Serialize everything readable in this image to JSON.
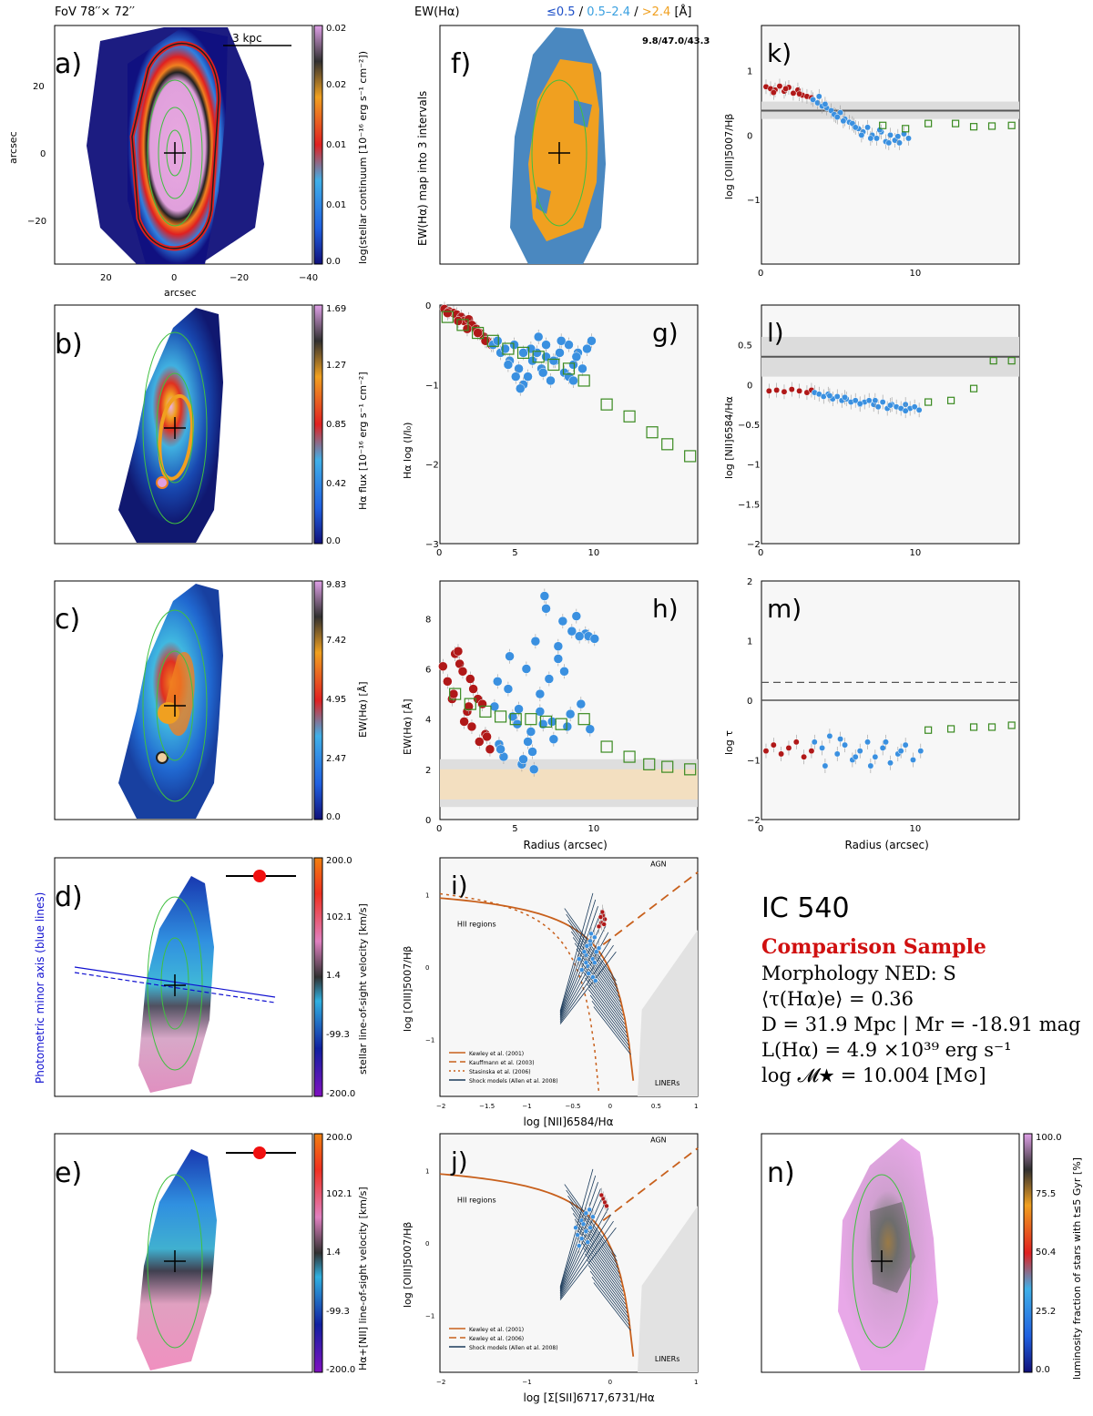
{
  "figure": {
    "header_fov": "FoV 78′′× 72′′",
    "header_ew": "EW(Hα)",
    "ew_intervals": {
      "low": "≤0.5",
      "sep1": " / ",
      "mid": "0.5–2.4",
      "sep2": " / ",
      "high": ">2.4",
      "unit": " [Å]"
    },
    "colors": {
      "low": "#1e50c8",
      "mid": "#3aa0e0",
      "high": "#f0a020",
      "red_title": "#d01010",
      "blue_axis": "#1010d0"
    }
  },
  "info": {
    "galaxy": "IC 540",
    "sample": "Comparison Sample",
    "morphology": "Morphology NED: S",
    "tau": "⟨τ(Hα)e⟩ = 0.36",
    "distance": "D = 31.9 Mpc | Mr = -18.91 mag",
    "lha": "L(Hα) = 4.9 ×10³⁹ erg s⁻¹",
    "mass": "log 𝓜★ = 10.004 [M⊙]"
  },
  "maps": {
    "a": {
      "label": "a)",
      "cbar_label": "log(stellar continuum [10⁻¹⁶ erg s⁻¹ cm⁻²])",
      "cbar_ticks": [
        "0.02",
        "0.02",
        "0.01",
        "0.01",
        "0.0"
      ],
      "x_label": "arcsec",
      "y_label": "arcsec",
      "x_ticks": [
        "20",
        "0",
        "−20",
        "−40"
      ],
      "y_ticks": [
        "20",
        "0",
        "−20"
      ],
      "scale_bar": "3 kpc"
    },
    "b": {
      "label": "b)",
      "cbar_label": "Hα flux [10⁻¹⁶ erg s⁻¹ cm⁻²]",
      "cbar_ticks": [
        "1.69",
        "1.27",
        "0.85",
        "0.42",
        "0.0"
      ]
    },
    "c": {
      "label": "c)",
      "cbar_label": "EW(Hα) [Å]",
      "cbar_ticks": [
        "9.83",
        "7.42",
        "4.95",
        "2.47",
        "0.0"
      ]
    },
    "d": {
      "label": "d)",
      "cbar_label": "stellar line-of-sight velocity [km/s]",
      "cbar_ticks": [
        "200.0",
        "102.1",
        "1.4",
        "-99.3",
        "-200.0"
      ],
      "side_label": "Photometric minor axis (blue lines)"
    },
    "e": {
      "label": "e)",
      "cbar_label": "Hα+[NII] line-of-sight velocity [km/s]",
      "cbar_ticks": [
        "200.0",
        "102.1",
        "1.4",
        "-99.3",
        "-200.0"
      ]
    },
    "f": {
      "label": "f)",
      "y_label": "EW(Hα) map into 3 intervals",
      "stats": "9.8/47.0/43.3"
    },
    "n": {
      "label": "n)",
      "cbar_label": "luminosity fraction of stars with t≤5 Gyr [%]",
      "cbar_ticks": [
        "100.0",
        "75.5",
        "50.4",
        "25.2",
        "0.0"
      ]
    }
  },
  "chart_data": [
    {
      "id": "g",
      "label": "g)",
      "type": "scatter",
      "xlabel": "",
      "ylabel": "Hα log (I/I₀)",
      "xlim": [
        0,
        17
      ],
      "ylim": [
        -3,
        0
      ],
      "x_ticks": [
        "0",
        "5",
        "10"
      ],
      "y_ticks": [
        "0",
        "−1",
        "−2",
        "−3"
      ],
      "series": [
        {
          "name": "red",
          "x": [
            0.3,
            0.6,
            0.9,
            1.1,
            1.4,
            1.6,
            1.9,
            2.1,
            2.4,
            2.6,
            2.9,
            3.1,
            3.4,
            0.5,
            1.2,
            1.8,
            2.5,
            3.0
          ],
          "y": [
            -0.05,
            -0.08,
            -0.1,
            -0.12,
            -0.15,
            -0.2,
            -0.18,
            -0.25,
            -0.3,
            -0.35,
            -0.4,
            -0.45,
            -0.5,
            -0.1,
            -0.2,
            -0.3,
            -0.35,
            -0.45
          ]
        },
        {
          "name": "blue",
          "x": [
            3.5,
            3.8,
            4.0,
            4.3,
            4.6,
            4.9,
            5.2,
            5.5,
            5.8,
            6.1,
            6.4,
            6.7,
            7.0,
            7.3,
            7.6,
            7.9,
            8.2,
            8.5,
            8.8,
            9.1,
            9.4,
            9.7,
            10.0,
            4.5,
            5.0,
            5.5,
            6.0,
            6.5,
            7.0,
            7.5,
            8.0,
            8.5,
            9.0,
            5.3,
            6.8,
            8.8
          ],
          "y": [
            -0.5,
            -0.45,
            -0.6,
            -0.55,
            -0.7,
            -0.5,
            -0.8,
            -0.6,
            -0.9,
            -0.7,
            -0.6,
            -0.8,
            -0.5,
            -0.95,
            -0.7,
            -0.6,
            -0.85,
            -0.5,
            -0.75,
            -0.6,
            -0.8,
            -0.55,
            -0.45,
            -0.75,
            -0.9,
            -1.0,
            -0.55,
            -0.4,
            -0.65,
            -0.7,
            -0.45,
            -0.9,
            -0.65,
            -1.05,
            -0.85,
            -0.95
          ]
        },
        {
          "name": "green_bins",
          "x": [
            0.5,
            1.5,
            2.5,
            3.5,
            4.5,
            5.5,
            6.5,
            7.5,
            8.5,
            9.5,
            11.0,
            12.5,
            14.0,
            15.0,
            16.5
          ],
          "y": [
            -0.15,
            -0.25,
            -0.35,
            -0.45,
            -0.55,
            -0.6,
            -0.65,
            -0.75,
            -0.8,
            -0.95,
            -1.25,
            -1.4,
            -1.6,
            -1.75,
            -1.9
          ]
        }
      ]
    },
    {
      "id": "h",
      "label": "h)",
      "type": "scatter",
      "xlabel": "Radius (arcsec)",
      "ylabel": "EW(Hα) [Å]",
      "xlim": [
        0,
        17
      ],
      "ylim": [
        0,
        9.5
      ],
      "x_ticks": [
        "0",
        "5",
        "10"
      ],
      "y_ticks": [
        "0",
        "2",
        "4",
        "6",
        "8"
      ],
      "series": [
        {
          "name": "red",
          "x": [
            0.2,
            0.5,
            0.8,
            1.0,
            1.3,
            1.5,
            1.8,
            2.0,
            2.2,
            2.5,
            2.8,
            3.0,
            3.3,
            1.2,
            1.6,
            2.1,
            2.6,
            3.1,
            0.9,
            1.9
          ],
          "y": [
            6.1,
            5.5,
            4.8,
            6.6,
            6.2,
            5.9,
            4.3,
            5.6,
            5.2,
            4.8,
            4.6,
            3.4,
            2.8,
            6.7,
            3.9,
            3.7,
            3.1,
            3.3,
            5.0,
            4.5
          ]
        },
        {
          "name": "blue",
          "x": [
            3.6,
            3.9,
            4.2,
            4.5,
            4.8,
            5.1,
            5.4,
            5.7,
            6.0,
            6.3,
            6.6,
            6.9,
            7.2,
            7.5,
            7.8,
            8.1,
            8.4,
            8.7,
            9.0,
            9.3,
            9.6,
            9.9,
            4.0,
            4.6,
            5.2,
            5.8,
            6.2,
            6.6,
            7.0,
            7.4,
            7.8,
            8.2,
            8.6,
            9.2,
            9.8,
            10.2,
            5.5,
            6.1,
            6.8,
            3.8
          ],
          "y": [
            4.5,
            3.0,
            2.5,
            5.2,
            4.1,
            3.8,
            2.2,
            6.0,
            3.5,
            7.1,
            4.3,
            8.9,
            5.6,
            3.2,
            6.4,
            7.9,
            3.7,
            7.5,
            8.1,
            4.6,
            7.4,
            3.6,
            2.8,
            6.5,
            4.4,
            3.1,
            2.0,
            5.0,
            8.4,
            3.9,
            6.9,
            5.9,
            4.2,
            7.3,
            7.3,
            7.2,
            2.4,
            2.7,
            3.8,
            5.5
          ]
        },
        {
          "name": "green_bins",
          "x": [
            1.0,
            2.0,
            3.0,
            4.0,
            5.0,
            6.0,
            7.0,
            8.0,
            9.5,
            11.0,
            12.5,
            13.8,
            15.0,
            16.5
          ],
          "y": [
            5.0,
            4.6,
            4.3,
            4.1,
            4.0,
            4.0,
            3.9,
            3.8,
            4.0,
            2.9,
            2.5,
            2.2,
            2.1,
            2.0
          ]
        }
      ],
      "bands": [
        {
          "name": "grey",
          "range": [
            0.5,
            2.4
          ]
        },
        {
          "name": "orange",
          "range": [
            0.8,
            2.0
          ]
        }
      ]
    },
    {
      "id": "k",
      "label": "k)",
      "type": "scatter",
      "xlabel": "",
      "ylabel": "log [OIII]5007/Hβ",
      "xlim": [
        0,
        17
      ],
      "ylim": [
        -2,
        1.7
      ],
      "x_ticks": [
        "0",
        "10"
      ],
      "y_ticks": [
        "1",
        "0",
        "−1"
      ],
      "hline": 0.38,
      "hband": [
        0.25,
        0.52
      ],
      "series": [
        {
          "name": "red",
          "x": [
            0.3,
            0.6,
            0.9,
            1.2,
            1.5,
            1.8,
            2.1,
            2.4,
            2.7,
            3.0,
            3.3,
            0.8,
            1.6,
            2.5
          ],
          "y": [
            0.75,
            0.72,
            0.7,
            0.76,
            0.68,
            0.74,
            0.65,
            0.7,
            0.62,
            0.6,
            0.58,
            0.66,
            0.72,
            0.64
          ]
        },
        {
          "name": "blue",
          "x": [
            3.4,
            3.7,
            4.0,
            4.3,
            4.6,
            4.9,
            5.2,
            5.5,
            5.8,
            6.1,
            6.4,
            6.7,
            7.0,
            7.3,
            7.6,
            7.9,
            8.2,
            8.5,
            8.8,
            9.1,
            9.4,
            9.7,
            4.2,
            4.8,
            5.4,
            6.0,
            6.6,
            7.2,
            7.8,
            8.4,
            9.0,
            3.8,
            5.0,
            6.2
          ],
          "y": [
            0.55,
            0.5,
            0.45,
            0.42,
            0.38,
            0.3,
            0.35,
            0.25,
            0.2,
            0.15,
            0.1,
            0.05,
            0.12,
            0.0,
            -0.05,
            0.05,
            -0.1,
            0.0,
            -0.08,
            -0.12,
            0.02,
            -0.05,
            0.48,
            0.32,
            0.22,
            0.18,
            0.0,
            -0.05,
            0.08,
            -0.12,
            -0.02,
            0.6,
            0.28,
            0.12
          ]
        },
        {
          "name": "green_bins",
          "x": [
            8.0,
            9.5,
            11.0,
            12.8,
            14.0,
            15.2,
            16.5
          ],
          "y": [
            0.15,
            0.1,
            0.18,
            0.18,
            0.13,
            0.14,
            0.15
          ]
        }
      ]
    },
    {
      "id": "l",
      "label": "l)",
      "type": "scatter",
      "xlabel": "",
      "ylabel": "log [NII]6584/Hα",
      "xlim": [
        0,
        17
      ],
      "ylim": [
        -2,
        1.0
      ],
      "x_ticks": [
        "0",
        "10"
      ],
      "y_ticks": [
        "0.5",
        "0",
        "−0.5",
        "−1",
        "−1.5",
        "−2"
      ],
      "hline": 0.35,
      "hband": [
        0.1,
        0.6
      ],
      "series": [
        {
          "name": "red",
          "x": [
            0.5,
            1.0,
            1.5,
            2.0,
            2.5,
            3.0,
            3.3
          ],
          "y": [
            -0.08,
            -0.07,
            -0.09,
            -0.06,
            -0.08,
            -0.1,
            -0.07
          ]
        },
        {
          "name": "blue",
          "x": [
            3.5,
            3.8,
            4.1,
            4.4,
            4.7,
            5.0,
            5.3,
            5.6,
            5.9,
            6.2,
            6.5,
            6.8,
            7.1,
            7.4,
            7.7,
            8.0,
            8.3,
            8.6,
            8.9,
            9.2,
            9.5,
            9.8,
            10.1,
            10.4,
            4.5,
            5.5,
            6.5,
            7.5,
            8.5,
            9.5
          ],
          "y": [
            -0.1,
            -0.12,
            -0.15,
            -0.12,
            -0.18,
            -0.15,
            -0.2,
            -0.18,
            -0.22,
            -0.2,
            -0.25,
            -0.22,
            -0.2,
            -0.25,
            -0.28,
            -0.22,
            -0.3,
            -0.25,
            -0.28,
            -0.3,
            -0.25,
            -0.3,
            -0.28,
            -0.32,
            -0.14,
            -0.16,
            -0.24,
            -0.2,
            -0.26,
            -0.33
          ]
        },
        {
          "name": "green_bins",
          "x": [
            11.0,
            12.5,
            14.0,
            15.3,
            16.5
          ],
          "y": [
            -0.22,
            -0.2,
            -0.05,
            0.3,
            0.3
          ]
        }
      ]
    },
    {
      "id": "m",
      "label": "m)",
      "type": "scatter",
      "xlabel": "Radius (arcsec)",
      "ylabel": "log τ",
      "xlim": [
        0,
        17
      ],
      "ylim": [
        -2,
        2
      ],
      "x_ticks": [
        "0",
        "10"
      ],
      "y_ticks": [
        "2",
        "1",
        "0",
        "−1",
        "−2"
      ],
      "hline_solid": 0,
      "hline_dashed": 0.3,
      "series": [
        {
          "name": "red",
          "x": [
            0.3,
            0.8,
            1.3,
            1.8,
            2.3,
            2.8,
            3.3
          ],
          "y": [
            -0.85,
            -0.75,
            -0.9,
            -0.8,
            -0.7,
            -0.95,
            -0.85
          ]
        },
        {
          "name": "blue",
          "x": [
            3.5,
            4.0,
            4.5,
            5.0,
            5.5,
            6.0,
            6.5,
            7.0,
            7.5,
            8.0,
            8.5,
            9.0,
            9.5,
            10.0,
            10.5,
            4.2,
            5.2,
            6.2,
            7.2,
            8.2,
            9.2
          ],
          "y": [
            -0.7,
            -0.8,
            -0.6,
            -0.9,
            -0.75,
            -1.0,
            -0.85,
            -0.7,
            -0.95,
            -0.8,
            -1.05,
            -0.9,
            -0.75,
            -1.0,
            -0.85,
            -1.1,
            -0.65,
            -0.95,
            -1.1,
            -0.7,
            -0.85
          ]
        },
        {
          "name": "green_bins",
          "x": [
            11.0,
            12.5,
            14.0,
            15.2,
            16.5
          ],
          "y": [
            -0.5,
            -0.48,
            -0.45,
            -0.45,
            -0.42
          ]
        }
      ]
    },
    {
      "id": "i",
      "label": "i)",
      "type": "scatter",
      "xlabel": "log [NII]6584/Hα",
      "ylabel": "log [OIII]5007/Hβ",
      "xlim": [
        -2,
        1
      ],
      "ylim": [
        -1.8,
        1.5
      ],
      "x_ticks": [
        "−2",
        "−1.5",
        "−1",
        "−0.5",
        "0",
        "0.5",
        "1"
      ],
      "y_ticks": [
        "1",
        "0",
        "−1"
      ],
      "region_labels": [
        "AGN",
        "HII regions",
        "LINERs"
      ],
      "legend": [
        "Kewley et al. (2001)",
        "Kauffmann et al. (2003)",
        "Stasinska et al. (2006)",
        "Shock models (Allen et al. 2008)"
      ],
      "series": [
        {
          "name": "red",
          "x": [
            -0.12,
            -0.1,
            -0.08,
            -0.15,
            -0.11,
            -0.09,
            -0.13
          ],
          "y": [
            0.6,
            0.7,
            0.65,
            0.55,
            0.75,
            0.58,
            0.68
          ]
        },
        {
          "name": "blue",
          "x": [
            -0.2,
            -0.25,
            -0.18,
            -0.3,
            -0.22,
            -0.28,
            -0.35,
            -0.2,
            -0.15,
            -0.25,
            -0.32,
            -0.27,
            -0.22,
            -0.3,
            -0.38,
            -0.24,
            -0.19,
            -0.29
          ],
          "y": [
            0.4,
            0.3,
            0.2,
            0.15,
            0.1,
            0.0,
            -0.05,
            0.05,
            0.25,
            0.35,
            0.2,
            -0.1,
            -0.15,
            0.05,
            0.1,
            0.45,
            -0.2,
            0.28
          ]
        }
      ]
    },
    {
      "id": "j",
      "label": "j)",
      "type": "scatter",
      "xlabel": "log [Σ[SII]6717,6731/Hα",
      "ylabel": "log [OIII]5007/Hβ",
      "xlim": [
        -2,
        1
      ],
      "ylim": [
        -1.8,
        1.5
      ],
      "x_ticks": [
        "−2",
        "−1",
        "0",
        "1"
      ],
      "y_ticks": [
        "1",
        "0",
        "−1"
      ],
      "region_labels": [
        "AGN",
        "HII regions",
        "LINERs"
      ],
      "legend": [
        "Kewley et al. (2001)",
        "Kewley et al. (2006)",
        "Shock models (Allen et al. 2008)"
      ],
      "series": [
        {
          "name": "red",
          "x": [
            -0.1,
            -0.08,
            -0.12,
            -0.06
          ],
          "y": [
            0.6,
            0.55,
            0.65,
            0.5
          ]
        },
        {
          "name": "blue",
          "x": [
            -0.3,
            -0.35,
            -0.25,
            -0.4,
            -0.28,
            -0.33,
            -0.22,
            -0.38,
            -0.3,
            -0.26,
            -0.42,
            -0.35
          ],
          "y": [
            0.4,
            0.3,
            0.2,
            0.1,
            0.0,
            0.25,
            0.35,
            -0.05,
            0.15,
            0.45,
            0.2,
            0.05
          ]
        }
      ]
    }
  ]
}
